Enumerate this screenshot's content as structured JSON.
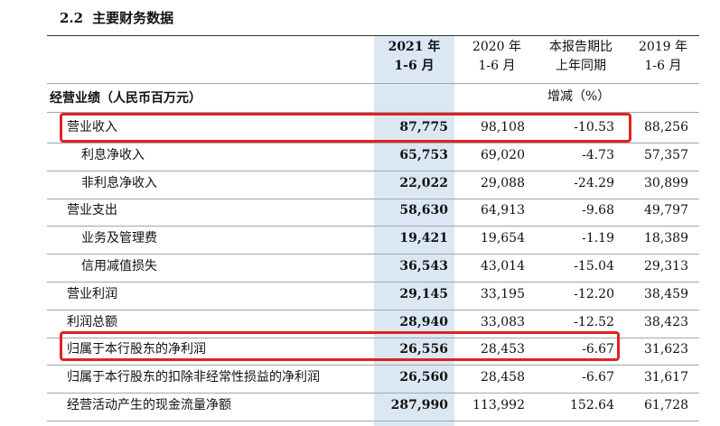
{
  "section": {
    "number": "2.2",
    "title": "主要财务数据"
  },
  "headers": [
    {
      "line1": "2021 年",
      "line2": "1-6 月"
    },
    {
      "line1": "2020 年",
      "line2": "1-6 月"
    },
    {
      "line1": "本报告期比",
      "line2": "上年同期"
    },
    {
      "line1": "2019 年",
      "line2": "1-6 月"
    }
  ],
  "group_label": "经营业绩（人民币百万元）",
  "change_label": "增减（%）",
  "rows": [
    {
      "label": "营业收入",
      "v2021": "87,775",
      "v2020": "98,108",
      "change": "-10.53",
      "v2019": "88,256"
    },
    {
      "label": "利息净收入",
      "v2021": "65,753",
      "v2020": "69,020",
      "change": "-4.73",
      "v2019": "57,357"
    },
    {
      "label": "非利息净收入",
      "v2021": "22,022",
      "v2020": "29,088",
      "change": "-24.29",
      "v2019": "30,899"
    },
    {
      "label": "营业支出",
      "v2021": "58,630",
      "v2020": "64,913",
      "change": "-9.68",
      "v2019": "49,797"
    },
    {
      "label": "业务及管理费",
      "v2021": "19,421",
      "v2020": "19,654",
      "change": "-1.19",
      "v2019": "18,389"
    },
    {
      "label": "信用减值损失",
      "v2021": "36,543",
      "v2020": "43,014",
      "change": "-15.04",
      "v2019": "29,313"
    },
    {
      "label": "营业利润",
      "v2021": "29,145",
      "v2020": "33,195",
      "change": "-12.20",
      "v2019": "38,459"
    },
    {
      "label": "利润总额",
      "v2021": "28,940",
      "v2020": "33,083",
      "change": "-12.52",
      "v2019": "38,423"
    },
    {
      "label": "归属于本行股东的净利润",
      "v2021": "26,556",
      "v2020": "28,453",
      "change": "-6.67",
      "v2019": "31,623"
    },
    {
      "label": "归属于本行股东的扣除非经常性损益的净利润",
      "v2021": "26,560",
      "v2020": "28,458",
      "change": "-6.67",
      "v2019": "31,617"
    },
    {
      "label": "经营活动产生的现金流量净额",
      "v2021": "287,990",
      "v2020": "113,992",
      "change": "152.64",
      "v2019": "61,728"
    }
  ],
  "colors": {
    "highlight_column": "#dbe8f4",
    "annotation_box": "#e0221f"
  }
}
